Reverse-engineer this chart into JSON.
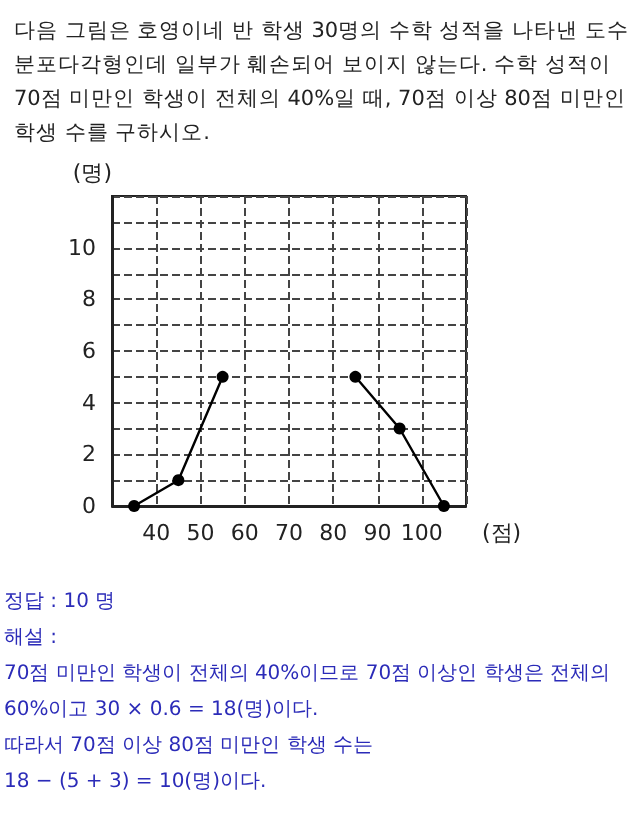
{
  "chart_data": {
    "type": "line",
    "title": "다음 그림은 호영이네 반 학생 30명의 수학 성적을 나타낸 도수분포다각형인데 일부가 훼손되어 보이지 않는다. 수학 성적이 70점 미만인 학생이 전체의 40%일 때, 70점 이상 80점 미만인 학생 수를 구하시오.",
    "xlabel": "(점)",
    "ylabel": "(명)",
    "x": [
      35,
      45,
      55,
      65,
      75,
      85,
      95,
      105
    ],
    "series": [
      {
        "color": "#000000",
        "values": [
          0,
          1,
          5,
          null,
          null,
          5,
          3,
          0
        ]
      }
    ],
    "xlim": [
      30,
      110
    ],
    "xticks": [
      40,
      50,
      60,
      70,
      80,
      90,
      100
    ],
    "ylim": [
      0,
      12
    ],
    "yticks": [
      0,
      {
        "value": 1,
        "label": null
      },
      2,
      {
        "value": 3,
        "label": null
      },
      4,
      {
        "value": 5,
        "label": null
      },
      6,
      {
        "value": 7,
        "label": null
      },
      8,
      {
        "value": 9,
        "label": null
      },
      10,
      {
        "value": 11,
        "label": null
      },
      {
        "value": 12,
        "label": null
      }
    ],
    "grid": true,
    "marker": "circle",
    "line_style": "solid",
    "annotations": [
      "정답 : 10 명",
      "해설 :",
      "70점 미만인 학생이 전체의 40%이므로 70점 이상인 학생은 전체의",
      "60%이고 30 × 0.6 = 18(명)이다.",
      "따라서 70점 이상 80점 미만인 학생 수는",
      "18 − (5 + 3) = 10(명)이다."
    ]
  }
}
